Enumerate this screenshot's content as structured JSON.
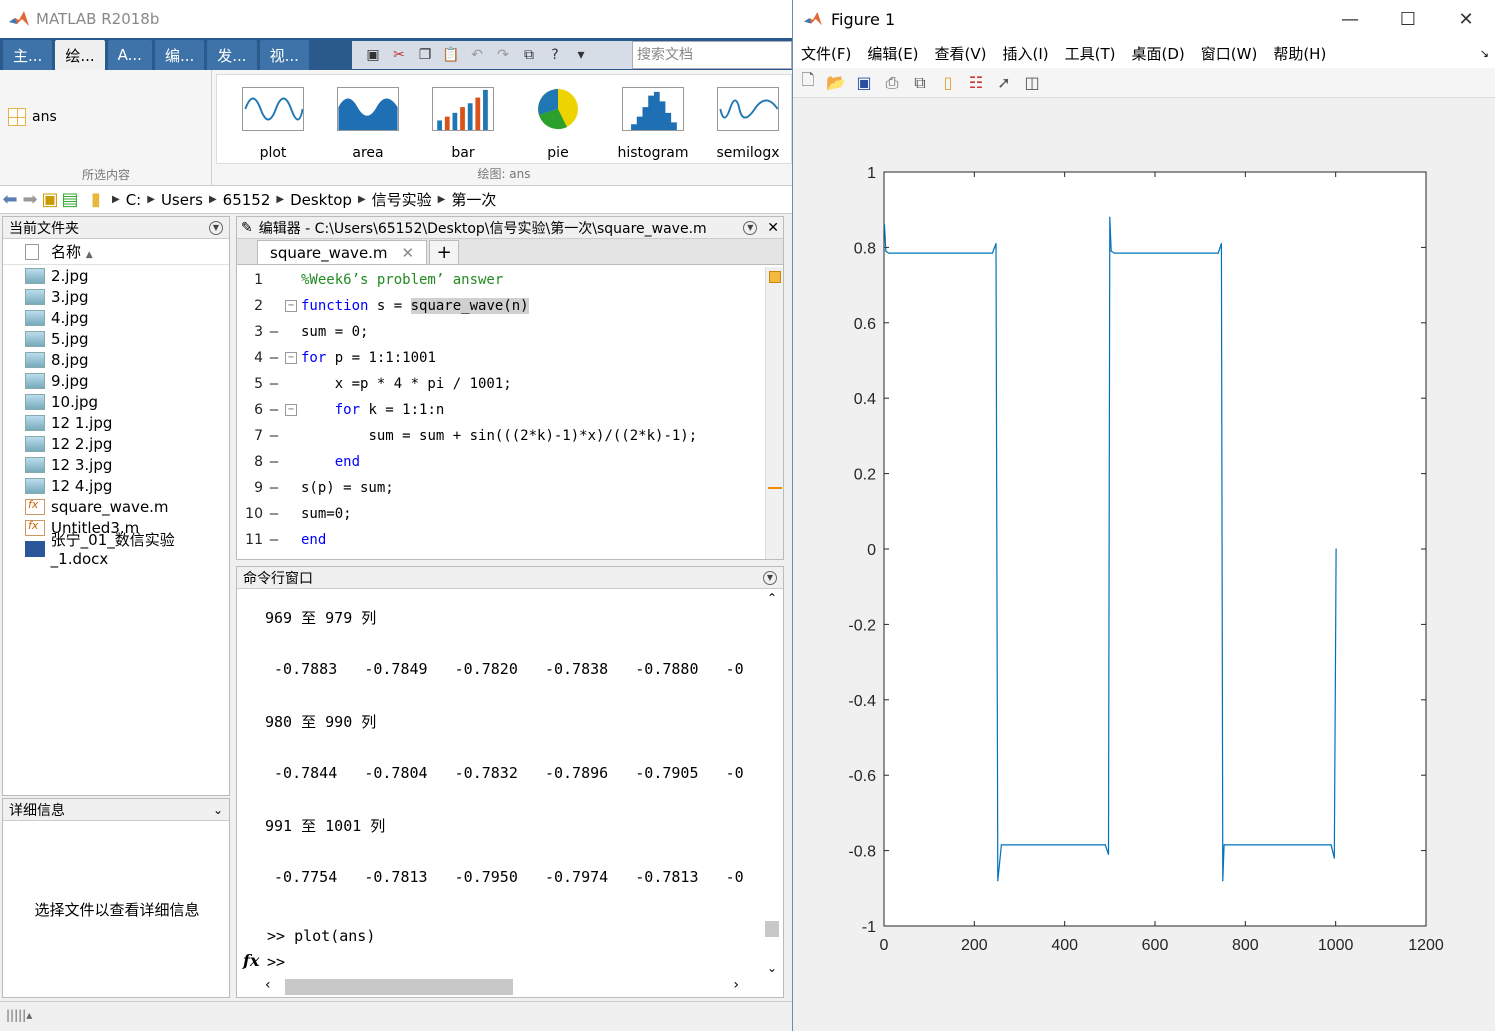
{
  "app": {
    "title": "MATLAB R2018b"
  },
  "ribbon": {
    "tabs": [
      "主...",
      "绘...",
      "A...",
      "编...",
      "发...",
      "视..."
    ],
    "search_placeholder": "搜索文档",
    "selection_caption": "所选内容",
    "selection_var": "ans",
    "plots_caption": "绘图: ans",
    "gallery": [
      "plot",
      "area",
      "bar",
      "pie",
      "histogram",
      "semilogx"
    ]
  },
  "address": {
    "crumbs": [
      "C:",
      "Users",
      "65152",
      "Desktop",
      "信号实验",
      "第一次"
    ]
  },
  "filepanel": {
    "title": "当前文件夹",
    "col_name": "名称",
    "files": [
      {
        "name": "2.jpg",
        "type": "img"
      },
      {
        "name": "3.jpg",
        "type": "img"
      },
      {
        "name": "4.jpg",
        "type": "img"
      },
      {
        "name": "5.jpg",
        "type": "img"
      },
      {
        "name": "8.jpg",
        "type": "img"
      },
      {
        "name": "9.jpg",
        "type": "img"
      },
      {
        "name": "10.jpg",
        "type": "img"
      },
      {
        "name": "12 1.jpg",
        "type": "img"
      },
      {
        "name": "12 2.jpg",
        "type": "img"
      },
      {
        "name": "12 3.jpg",
        "type": "img"
      },
      {
        "name": "12 4.jpg",
        "type": "img"
      },
      {
        "name": "square_wave.m",
        "type": "m"
      },
      {
        "name": "Untitled3.m",
        "type": "m"
      },
      {
        "name": "张宁_01_数信实验_1.docx",
        "type": "doc"
      }
    ]
  },
  "detail": {
    "title": "详细信息",
    "message": "选择文件以查看详细信息"
  },
  "editor": {
    "title": "编辑器 - C:\\Users\\65152\\Desktop\\信号实验\\第一次\\square_wave.m",
    "tab": "square_wave.m",
    "lines": [
      {
        "n": "1",
        "d": "",
        "indent": "",
        "parts": [
          {
            "t": "%Week6’s problem’ answer",
            "c": "cmt"
          }
        ]
      },
      {
        "n": "2",
        "d": "",
        "fold": "−",
        "indent": "",
        "parts": [
          {
            "t": "function",
            "c": "kw"
          },
          {
            "t": " s = ",
            "c": ""
          },
          {
            "t": "square_wave(n)",
            "c": "hl"
          }
        ]
      },
      {
        "n": "3",
        "d": "—",
        "indent": "",
        "parts": [
          {
            "t": "sum = 0;",
            "c": ""
          }
        ]
      },
      {
        "n": "4",
        "d": "—",
        "fold": "−",
        "indent": "",
        "parts": [
          {
            "t": "for",
            "c": "kw"
          },
          {
            "t": " p = 1:1:1001",
            "c": ""
          }
        ]
      },
      {
        "n": "5",
        "d": "—",
        "indent": "    ",
        "parts": [
          {
            "t": "x =p * 4 * pi / 1001;",
            "c": ""
          }
        ]
      },
      {
        "n": "6",
        "d": "—",
        "fold": "−",
        "indent": "    ",
        "parts": [
          {
            "t": "for",
            "c": "kw"
          },
          {
            "t": " k = 1:1:n",
            "c": ""
          }
        ]
      },
      {
        "n": "7",
        "d": "—",
        "indent": "        ",
        "parts": [
          {
            "t": "sum = sum + sin(((2*k)-1)*x)/((2*k)-1);",
            "c": ""
          }
        ]
      },
      {
        "n": "8",
        "d": "—",
        "indent": "    ",
        "parts": [
          {
            "t": "end",
            "c": "kw"
          }
        ]
      },
      {
        "n": "9",
        "d": "—",
        "indent": "",
        "parts": [
          {
            "t": "s(p) = sum;",
            "c": ""
          }
        ]
      },
      {
        "n": "10",
        "d": "—",
        "indent": "",
        "parts": [
          {
            "t": "sum=0;",
            "c": ""
          }
        ]
      },
      {
        "n": "11",
        "d": "—",
        "indent": "",
        "parts": [
          {
            "t": "end",
            "c": "kw"
          }
        ]
      }
    ]
  },
  "cmd": {
    "title": "命令行窗口",
    "output": [
      "969 至 979 列",
      " -0.7883   -0.7849   -0.7820   -0.7838   -0.7880   -0",
      "980 至 990 列",
      " -0.7844   -0.7804   -0.7832   -0.7896   -0.7905   -0",
      "991 至 1001 列",
      " -0.7754   -0.7813   -0.7950   -0.7974   -0.7813   -0"
    ],
    "prompt_line": ">> plot(ans)",
    "prompt": ">>",
    "fx": "fx"
  },
  "figure": {
    "title": "Figure 1",
    "menu": [
      "文件(F)",
      "编辑(E)",
      "查看(V)",
      "插入(I)",
      "工具(T)",
      "桌面(D)",
      "窗口(W)",
      "帮助(H)"
    ]
  },
  "chart_data": {
    "type": "line",
    "title": "",
    "xlabel": "",
    "ylabel": "",
    "xlim": [
      0,
      1200
    ],
    "ylim": [
      -1,
      1
    ],
    "xticks": [
      0,
      200,
      400,
      600,
      800,
      1000,
      1200
    ],
    "yticks": [
      -1,
      -0.8,
      -0.6,
      -0.4,
      -0.2,
      0,
      0.2,
      0.4,
      0.6,
      0.8,
      1
    ],
    "series": [
      {
        "color": "#0072bd",
        "x": [
          1,
          4,
          10,
          240,
          248,
          252,
          260,
          490,
          497,
          500,
          503,
          510,
          740,
          747,
          750,
          753,
          760,
          990,
          997,
          1000,
          1001
        ],
        "y": [
          0.86,
          0.79,
          0.785,
          0.785,
          0.81,
          -0.88,
          -0.785,
          -0.785,
          -0.81,
          0.88,
          0.79,
          0.785,
          0.785,
          0.81,
          -0.88,
          -0.785,
          -0.785,
          -0.785,
          -0.82,
          -0.2,
          0.0
        ]
      }
    ],
    "grid": false,
    "line_color": "#0072bd"
  }
}
